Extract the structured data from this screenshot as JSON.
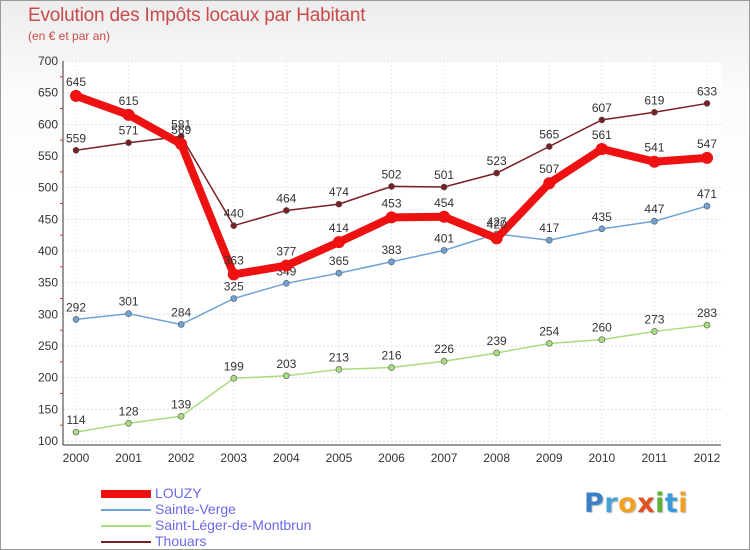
{
  "title": "Evolution des Impôts locaux par Habitant",
  "subtitle": "(en € et par an)",
  "logo": {
    "text": "Proxiti",
    "letters": [
      "P",
      "r",
      "o",
      "x",
      "i",
      "t",
      "i"
    ],
    "colors": [
      "#3a7fc8",
      "#4aa3d6",
      "#f0a020",
      "#e05020",
      "#5ab030",
      "#3a9ad8",
      "#f0a020"
    ]
  },
  "chart_data": {
    "type": "line",
    "title": "Evolution des Impôts locaux par Habitant",
    "subtitle": "(en € et par an)",
    "xlabel": "",
    "ylabel": "",
    "x": [
      2000,
      2001,
      2002,
      2003,
      2004,
      2005,
      2006,
      2007,
      2008,
      2009,
      2010,
      2011,
      2012
    ],
    "x_tick_labels": [
      "2000",
      "2001",
      "2002",
      "2003",
      "2004",
      "2005",
      "2006",
      "2007",
      "2008",
      "2009",
      "2010",
      "2011",
      "2012"
    ],
    "ylim": [
      100,
      700
    ],
    "y_ticks": [
      100,
      150,
      200,
      250,
      300,
      350,
      400,
      450,
      500,
      550,
      600,
      650,
      700
    ],
    "y_tick_labels": [
      "100",
      "150",
      "200",
      "250",
      "300",
      "350",
      "400",
      "450",
      "500",
      "550",
      "600",
      "650",
      "700"
    ],
    "grid": true,
    "legend_position": "bottom-left",
    "series": [
      {
        "name": "Thouars",
        "color": "#7a1f24",
        "values": [
          559,
          571,
          581,
          440,
          464,
          474,
          502,
          501,
          523,
          565,
          607,
          619,
          633
        ],
        "labels": [
          "559",
          "571",
          "581",
          "440",
          "464",
          "474",
          "502",
          "501",
          "523",
          "565",
          "607",
          "619",
          "633"
        ]
      },
      {
        "name": "Sainte-Verge",
        "color": "#6ea3d6",
        "values": [
          292,
          301,
          284,
          325,
          349,
          365,
          383,
          401,
          427,
          417,
          435,
          447,
          471
        ],
        "labels": [
          "292",
          "301",
          "284",
          "325",
          "349",
          "365",
          "383",
          "401",
          "427",
          "417",
          "435",
          "447",
          "471"
        ]
      },
      {
        "name": "Saint-Léger-de-Montbrun",
        "color": "#a9dc7e",
        "values": [
          114,
          128,
          139,
          199,
          203,
          213,
          216,
          226,
          239,
          254,
          260,
          273,
          283
        ],
        "labels": [
          "114",
          "128",
          "139",
          "199",
          "203",
          "213",
          "216",
          "226",
          "239",
          "254",
          "260",
          "273",
          "283"
        ]
      },
      {
        "name": "LOUZY",
        "color": "#ee1111",
        "values": [
          645,
          615,
          569,
          363,
          377,
          414,
          453,
          454,
          420,
          507,
          561,
          541,
          547
        ],
        "labels": [
          "645",
          "615",
          "569",
          "363",
          "377",
          "414",
          "453",
          "454",
          "420",
          "507",
          "561",
          "541",
          "547"
        ]
      }
    ],
    "legend": [
      "LOUZY",
      "Sainte-Verge",
      "Saint-Léger-de-Montbrun",
      "Thouars"
    ]
  }
}
